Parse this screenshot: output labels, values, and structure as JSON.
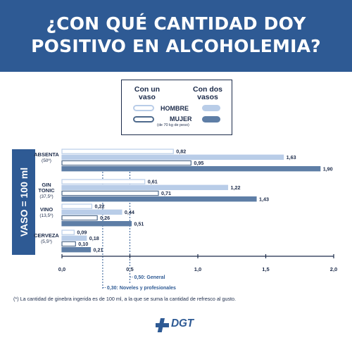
{
  "header": {
    "title_line1": "¿CON QUÉ CANTIDAD DOY",
    "title_line2": "POSITIVO EN ALCOHOLEMIA?"
  },
  "legend": {
    "one_glass": "Con un vaso",
    "two_glasses": "Con dos vasos",
    "man": "HOMBRE",
    "woman": "MUJER",
    "note": "(de 70 kg de peso)"
  },
  "side_label": "VASO = 100 ml",
  "chart_data": {
    "type": "bar",
    "orientation": "horizontal",
    "xlim": [
      0,
      2.0
    ],
    "x_ticks": [
      "0,0",
      "0,5",
      "1,0",
      "1,5",
      "2,0"
    ],
    "categories": [
      {
        "name": "ABSENTA",
        "sub": "(50º)"
      },
      {
        "name": "GIN TONIC",
        "sub": "(37,5º)"
      },
      {
        "name": "VINO",
        "sub": "(13,5º)"
      },
      {
        "name": "CERVEZA",
        "sub": "(5,5º)"
      }
    ],
    "series": [
      {
        "name": "HOMBRE con un vaso",
        "values": [
          0.82,
          0.61,
          0.22,
          0.09
        ],
        "labels": [
          "0,82",
          "0,61",
          "0,22",
          "0,09"
        ],
        "fill": "#ffffff",
        "stroke": "#b9cde8"
      },
      {
        "name": "HOMBRE con dos vasos",
        "values": [
          1.63,
          1.22,
          0.44,
          0.18
        ],
        "labels": [
          "1,63",
          "1,22",
          "0,44",
          "0,18"
        ],
        "fill": "#b9cde8",
        "stroke": "#b9cde8"
      },
      {
        "name": "MUJER con un vaso",
        "values": [
          0.95,
          0.71,
          0.26,
          0.1
        ],
        "labels": [
          "0,95",
          "0,71",
          "0,26",
          "0,10"
        ],
        "fill": "#ffffff",
        "stroke": "#4e6a8c"
      },
      {
        "name": "MUJER con dos vasos",
        "values": [
          1.9,
          1.43,
          0.51,
          0.21
        ],
        "labels": [
          "1,90",
          "1,43",
          "0,51",
          "0,21"
        ],
        "fill": "#5e7ea6",
        "stroke": "#5e7ea6"
      }
    ],
    "reference_lines": [
      {
        "value": 0.5,
        "label": "0,50: General"
      },
      {
        "value": 0.3,
        "label": "0,30: Noveles y profesionales"
      }
    ]
  },
  "footnote": "(*) La cantidad de ginebra ingerida es de 100 ml, a la que se suma la cantidad de refresco al gusto.",
  "logo": {
    "text": "DGT"
  },
  "colors": {
    "header": "#2e5a94",
    "dark_text": "#1c2b4a",
    "reference_line": "#2e5a94"
  }
}
